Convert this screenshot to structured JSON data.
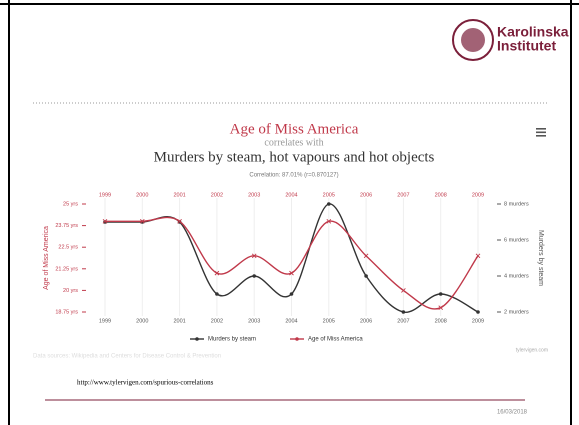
{
  "slide": {
    "logo": [
      "Karolinska",
      "Institutet"
    ],
    "url": "http://www.tylervigen.com/spurious-correlations",
    "date": "16/03/2018"
  },
  "chart_data": {
    "type": "line",
    "title": "Age of Miss America",
    "subtitle": "correlates with",
    "title2": "Murders by steam, hot vapours and hot objects",
    "correlation": "Correlation: 87.01% (r=0.870127)",
    "ylabel": "Age of Miss America",
    "y2label": "Murders by steam",
    "x": [
      1999,
      2000,
      2001,
      2002,
      2003,
      2004,
      2005,
      2006,
      2007,
      2008,
      2009
    ],
    "xlim": [
      1999,
      2009
    ],
    "series": [
      {
        "name": "Murders by steam",
        "color": "#333333",
        "axis": "y2",
        "values": [
          7,
          7,
          7,
          3,
          4,
          3,
          8,
          4,
          2,
          3,
          2
        ]
      },
      {
        "name": "Age of Miss America",
        "color": "#c0394a",
        "values": [
          24,
          24,
          24,
          21,
          22,
          21,
          24,
          22,
          20,
          19,
          22
        ]
      }
    ],
    "ylim": [
      18.75,
      25
    ],
    "yticks": [
      {
        "value": 18.75,
        "label": "18.75 yrs"
      },
      {
        "value": 20,
        "label": "20 yrs"
      },
      {
        "value": 21.25,
        "label": "21.25 yrs"
      },
      {
        "value": 22.5,
        "label": "22.5 yrs"
      },
      {
        "value": 23.75,
        "label": "23.75 yrs"
      },
      {
        "value": 25,
        "label": "25 yrs"
      }
    ],
    "y2lim": [
      2,
      8
    ],
    "y2ticks": [
      {
        "value": 2,
        "label": "2 murders"
      },
      {
        "value": 4,
        "label": "4 murders"
      },
      {
        "value": 6,
        "label": "6 murders"
      },
      {
        "value": 8,
        "label": "8 murders"
      }
    ],
    "source": "Data sources: Wikipedia and Centers for Disease Control & Prevention",
    "credit": "tylervigen.com",
    "grid": true
  }
}
